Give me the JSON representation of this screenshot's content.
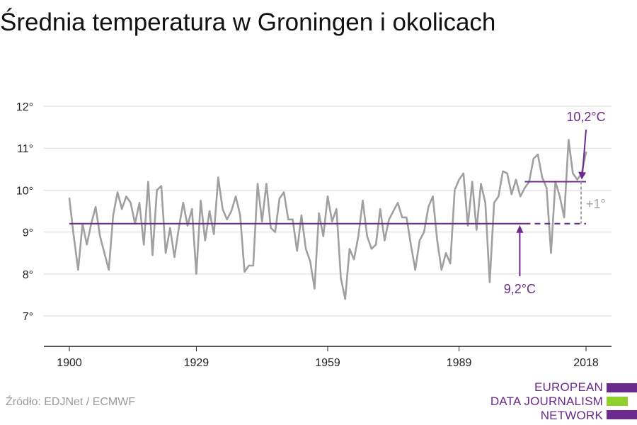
{
  "title": "Średnia temperatura w Groningen i okolicach",
  "source": "Źródło: EDJNet / ECMWF",
  "logo": {
    "lines": [
      "EUROPEAN",
      "DATA JOURNALISM",
      "NETWORK"
    ],
    "bar_colors": [
      "#6b2a8c",
      "#8fd12a",
      "#6b2a8c"
    ]
  },
  "colors": {
    "series": "#a0a0a0",
    "accent": "#6b2a8c",
    "grid": "#d9d9d9",
    "axis": "#222222",
    "delta": "#a0a0a0"
  },
  "chart_data": {
    "type": "line",
    "xlim": [
      1900,
      2018
    ],
    "ylim": [
      7,
      12
    ],
    "x_ticks": [
      1900,
      1929,
      1959,
      1989,
      2018
    ],
    "x_tick_labels": [
      "1900",
      "1929",
      "1959",
      "1989",
      "2018"
    ],
    "y_ticks": [
      7,
      8,
      9,
      10,
      11,
      12
    ],
    "y_tick_labels": [
      "7°",
      "8°",
      "9°",
      "10°",
      "11°",
      "12°"
    ],
    "grid": "horizontal",
    "series": [
      {
        "start_year": 1900,
        "values": [
          9.8,
          8.9,
          8.1,
          9.2,
          8.7,
          9.2,
          9.6,
          8.9,
          8.5,
          8.1,
          9.4,
          9.95,
          9.55,
          9.85,
          9.7,
          9.2,
          9.7,
          8.7,
          10.2,
          8.45,
          10.0,
          10.1,
          8.5,
          9.1,
          8.4,
          9.1,
          9.7,
          9.15,
          9.55,
          8.0,
          9.75,
          8.8,
          9.5,
          8.95,
          10.3,
          9.55,
          9.3,
          9.5,
          9.85,
          9.4,
          8.05,
          8.2,
          8.2,
          10.15,
          9.25,
          10.15,
          9.1,
          9.0,
          9.8,
          9.95,
          9.3,
          9.3,
          8.55,
          9.4,
          8.6,
          8.3,
          7.65,
          9.45,
          8.9,
          9.85,
          9.25,
          9.55,
          7.9,
          7.4,
          8.6,
          8.35,
          8.9,
          9.75,
          8.9,
          8.6,
          8.7,
          9.55,
          8.8,
          9.3,
          9.5,
          9.7,
          9.35,
          9.35,
          8.7,
          8.1,
          8.8,
          9.0,
          9.6,
          9.85,
          8.8,
          8.1,
          8.5,
          8.25,
          10.0,
          10.25,
          10.4,
          9.15,
          10.2,
          9.05,
          10.15,
          9.7,
          7.8,
          9.7,
          9.85,
          10.45,
          10.4,
          9.9,
          10.25,
          9.85,
          10.05,
          10.2,
          10.75,
          10.85,
          10.3,
          10.05,
          8.5,
          10.2,
          9.85,
          9.35,
          11.2,
          10.4,
          10.25,
          10.4,
          10.9
        ]
      }
    ],
    "reference_lines": [
      {
        "value": 9.2,
        "from": 1900,
        "to": 2018,
        "solid_until": 2004
      },
      {
        "value": 10.2,
        "from": 2004,
        "to": 2018
      }
    ],
    "annotations": {
      "low_label": "9,2°C",
      "high_label": "10,2°C",
      "delta_label": "+1°"
    }
  }
}
